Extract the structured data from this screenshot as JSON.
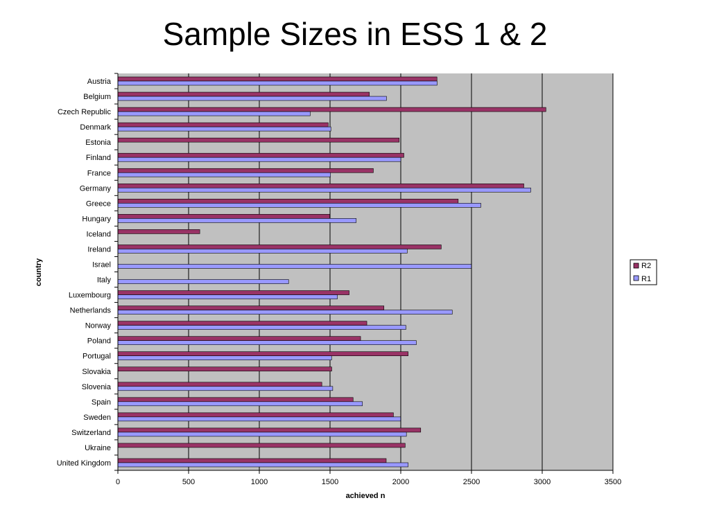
{
  "slide": {
    "title": "Sample Sizes in ESS 1 & 2"
  },
  "chart_data": {
    "type": "bar",
    "orientation": "horizontal",
    "xlabel": "achieved n",
    "ylabel": "country",
    "xlim": [
      0,
      3500
    ],
    "xticks": [
      0,
      500,
      1000,
      1500,
      2000,
      2500,
      3000,
      3500
    ],
    "grid": "vertical major gridlines",
    "legend_position": "right",
    "colors": {
      "R2": "#993366",
      "R1": "#9999ff",
      "plot_bg": "#c0c0c0"
    },
    "categories": [
      "Austria",
      "Belgium",
      "Czech Republic",
      "Denmark",
      "Estonia",
      "Finland",
      "France",
      "Germany",
      "Greece",
      "Hungary",
      "Iceland",
      "Ireland",
      "Israel",
      "Italy",
      "Luxembourg",
      "Netherlands",
      "Norway",
      "Poland",
      "Portugal",
      "Slovakia",
      "Slovenia",
      "Spain",
      "Sweden",
      "Switzerland",
      "Ukraine",
      "United Kingdom"
    ],
    "series": [
      {
        "name": "R2",
        "values": [
          2256,
          1778,
          3026,
          1487,
          1989,
          2022,
          1806,
          2870,
          2406,
          1498,
          579,
          2286,
          null,
          null,
          1635,
          1881,
          1760,
          1716,
          2052,
          1512,
          1442,
          1663,
          1948,
          2141,
          2031,
          1897
        ]
      },
      {
        "name": "R1",
        "values": [
          2257,
          1899,
          1360,
          1506,
          null,
          2000,
          1503,
          2919,
          2566,
          1685,
          null,
          2046,
          2499,
          1207,
          1552,
          2364,
          2036,
          2110,
          1511,
          null,
          1519,
          1729,
          1999,
          2040,
          null,
          2052
        ]
      }
    ]
  }
}
